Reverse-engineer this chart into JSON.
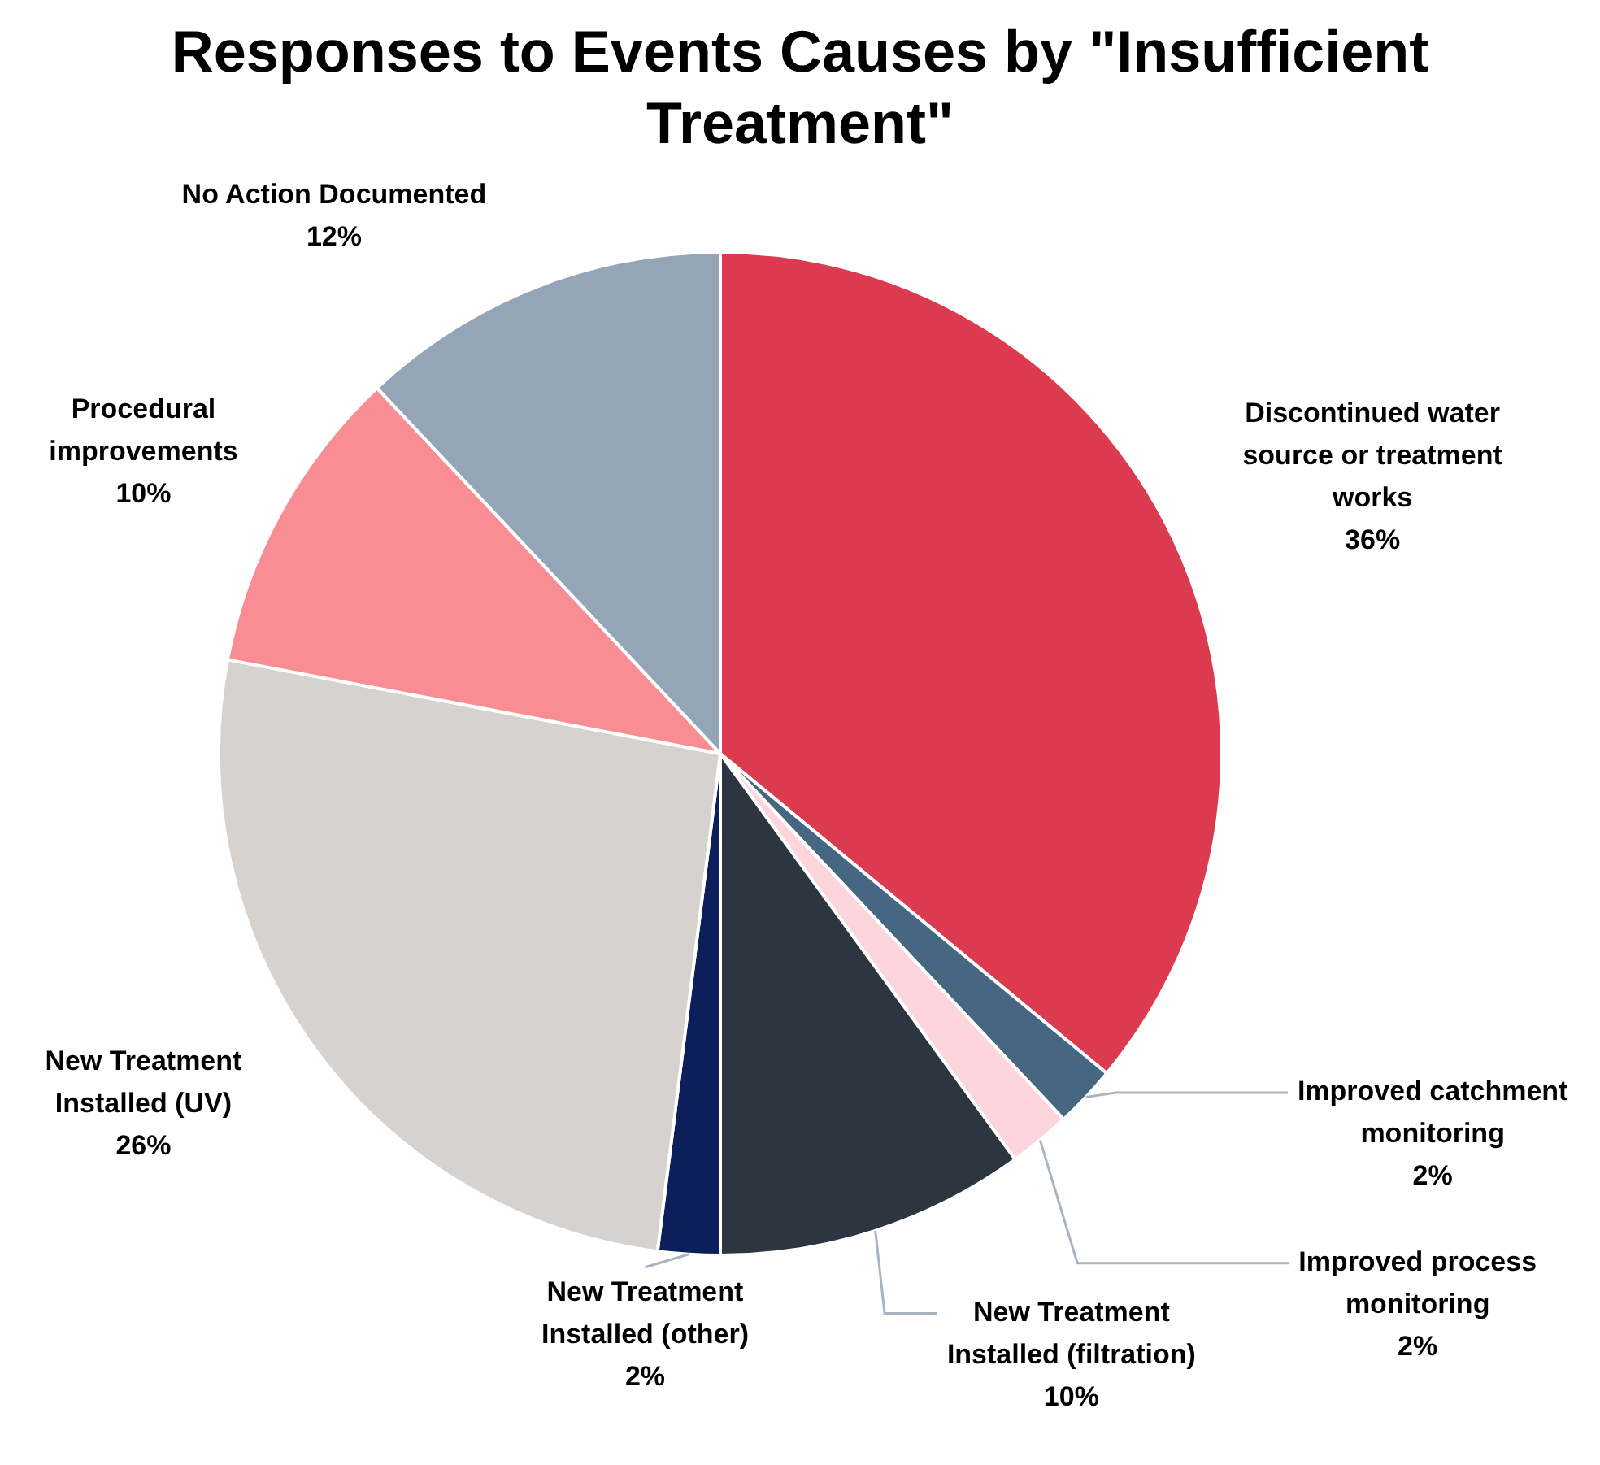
{
  "chart_data": {
    "type": "pie",
    "title": "Responses to Events Causes by \"Insufficient Treatment\"",
    "categories": [
      "Discontinued water source or treatment works",
      "Improved catchment monitoring",
      "Improved process monitoring",
      "New Treatment Installed (filtration)",
      "New Treatment Installed (other)",
      "New Treatment Installed (UV)",
      "Procedural improvements",
      "No Action Documented"
    ],
    "values": [
      36,
      2,
      2,
      10,
      2,
      26,
      10,
      12
    ],
    "colors": [
      "#dc3a4e",
      "#476682",
      "#fdd5dc",
      "#2d3640",
      "#0c1f5a",
      "#d6d2cf",
      "#f88d94",
      "#94a5b8"
    ],
    "value_labels": [
      "36%",
      "2%",
      "2%",
      "10%",
      "2%",
      "26%",
      "10%",
      "12%"
    ],
    "legend": false
  }
}
